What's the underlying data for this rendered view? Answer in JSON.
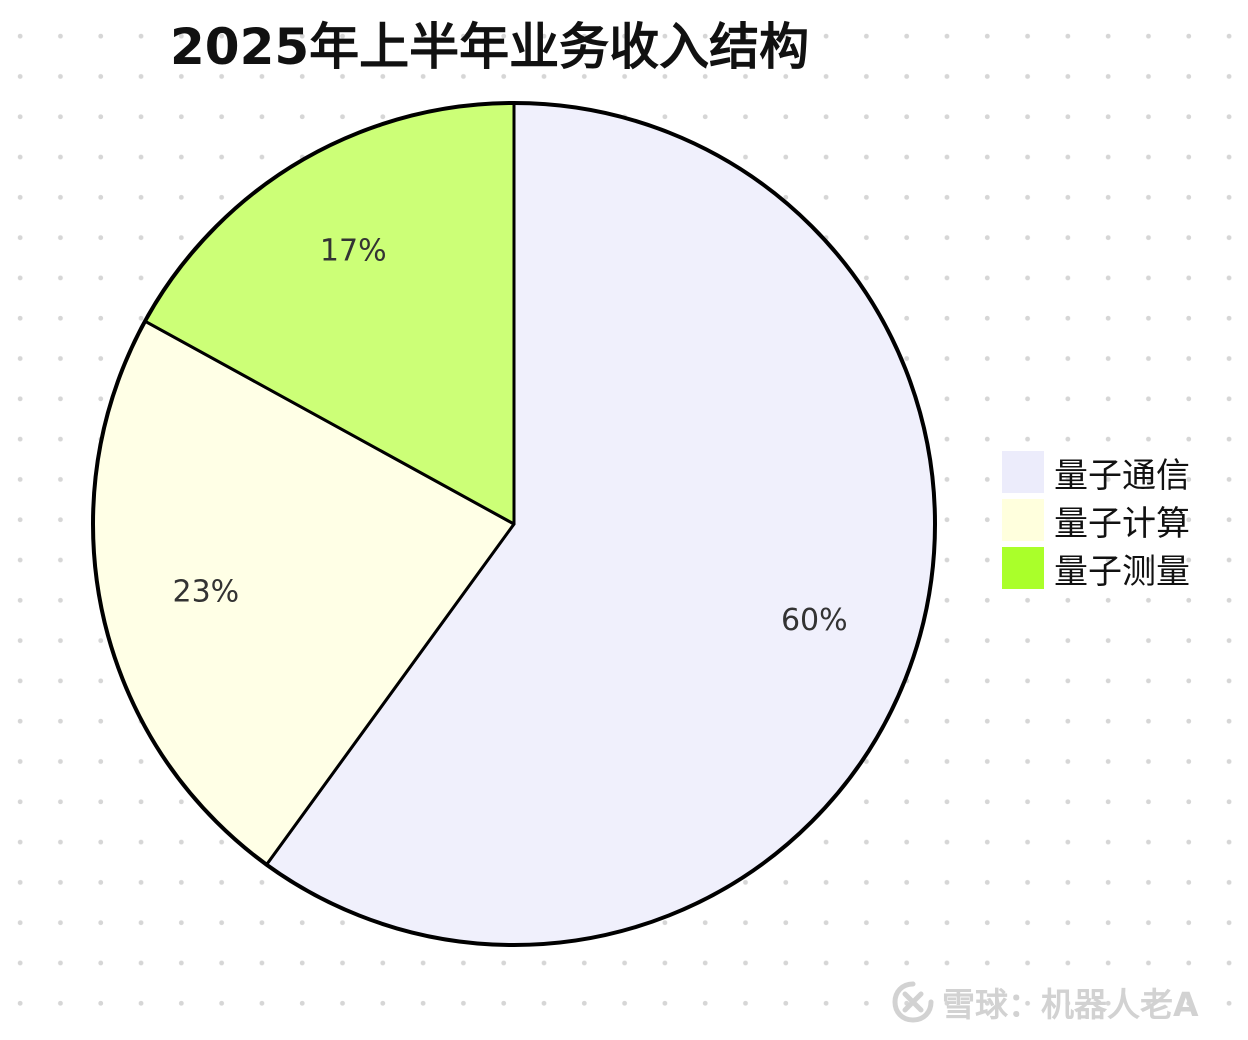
{
  "chart_data": {
    "type": "pie",
    "title": "2025年上半年业务收入结构",
    "slices": [
      {
        "name": "量子通信",
        "value": 60,
        "label": "60%",
        "color": "#f0f0fc"
      },
      {
        "name": "量子计算",
        "value": 23,
        "label": "23%",
        "color": "#ffffe6"
      },
      {
        "name": "量子测量",
        "value": 17,
        "label": "17%",
        "color": "#ccff77"
      }
    ],
    "legend_colors": [
      "#ececfb",
      "#ffffdd",
      "#aaff2a"
    ],
    "legend_position": "right",
    "start_angle": "12 o'clock",
    "direction": "clockwise",
    "stroke_color": "#000000"
  },
  "watermark": {
    "icon": "xueqiu-logo-icon",
    "text": "雪球：机器人老A"
  }
}
